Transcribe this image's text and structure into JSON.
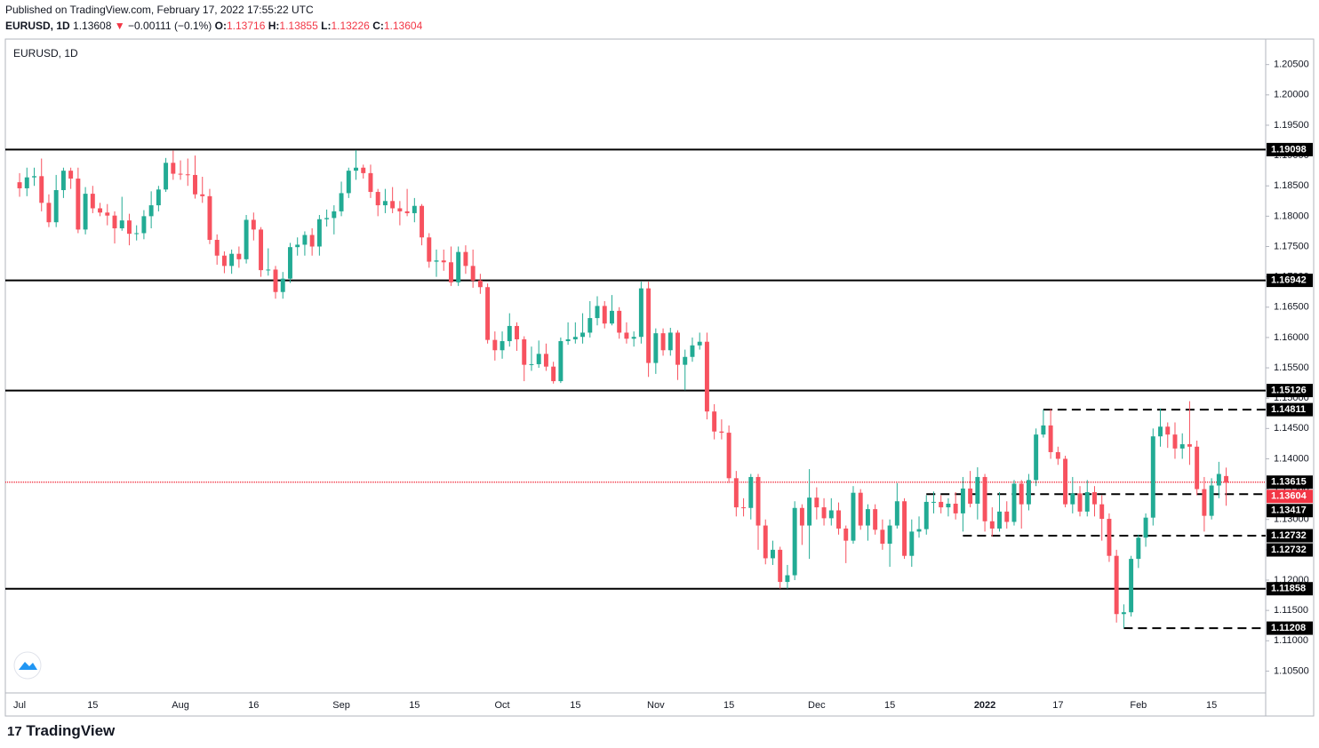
{
  "header": {
    "published": "Published on TradingView.com, February 17, 2022 17:55:22 UTC",
    "symbol": "EURUSD, 1D",
    "price": "1.13608",
    "arrow": "▼",
    "change": "−0.00111 (−0.1%)",
    "o_label": "O:",
    "o": "1.13716",
    "h_label": "H:",
    "h": "1.13855",
    "l_label": "L:",
    "l": "1.13226",
    "c_label": "C:",
    "c": "1.13604"
  },
  "footer": {
    "brand": "TradingView"
  },
  "chart_data": {
    "type": "candlestick",
    "title": "EURUSD, 1D",
    "up_color": "#22ab94",
    "down_color": "#f7525f",
    "grid": true,
    "xlim": [
      -1.95,
      170.4
    ],
    "ylim": [
      1.1014,
      1.2092
    ],
    "xticks": [
      {
        "value": 0,
        "label": "Jul"
      },
      {
        "value": 10,
        "label": "15"
      },
      {
        "value": 22,
        "label": "Aug"
      },
      {
        "value": 32,
        "label": "16"
      },
      {
        "value": 44,
        "label": "Sep"
      },
      {
        "value": 54,
        "label": "15"
      },
      {
        "value": 66,
        "label": "Oct"
      },
      {
        "value": 76,
        "label": "15"
      },
      {
        "value": 87,
        "label": "Nov"
      },
      {
        "value": 97,
        "label": "15"
      },
      {
        "value": 109,
        "label": "Dec"
      },
      {
        "value": 119,
        "label": "15"
      },
      {
        "value": 132,
        "label": "2022"
      },
      {
        "value": 142,
        "label": "17"
      },
      {
        "value": 153,
        "label": "Feb"
      },
      {
        "value": 163,
        "label": "15"
      }
    ],
    "yticks": [
      {
        "value": 1.105,
        "label": "1.10500"
      },
      {
        "value": 1.11,
        "label": "1.11000"
      },
      {
        "value": 1.115,
        "label": "1.11500"
      },
      {
        "value": 1.12,
        "label": "1.12000"
      },
      {
        "value": 1.125,
        "label": "1.12500"
      },
      {
        "value": 1.13,
        "label": "1.13000"
      },
      {
        "value": 1.135,
        "label": "1.13500"
      },
      {
        "value": 1.14,
        "label": "1.14000"
      },
      {
        "value": 1.145,
        "label": "1.14500"
      },
      {
        "value": 1.15,
        "label": "1.15000"
      },
      {
        "value": 1.155,
        "label": "1.15500"
      },
      {
        "value": 1.16,
        "label": "1.16000"
      },
      {
        "value": 1.165,
        "label": "1.16500"
      },
      {
        "value": 1.17,
        "label": "1.17000"
      },
      {
        "value": 1.175,
        "label": "1.17500"
      },
      {
        "value": 1.18,
        "label": "1.18000"
      },
      {
        "value": 1.185,
        "label": "1.18500"
      },
      {
        "value": 1.19,
        "label": "1.19000"
      },
      {
        "value": 1.195,
        "label": "1.19500"
      },
      {
        "value": 1.2,
        "label": "1.20000"
      },
      {
        "value": 1.205,
        "label": "1.20500"
      }
    ],
    "levels": [
      {
        "value": 1.19098,
        "label": "1.19098",
        "style": "solid"
      },
      {
        "value": 1.16942,
        "label": "1.16942",
        "style": "solid"
      },
      {
        "value": 1.15126,
        "label": "1.15126",
        "style": "solid"
      },
      {
        "value": 1.14811,
        "label": "1.14811",
        "style": "dashed",
        "from": 140
      },
      {
        "value": 1.13615,
        "label": "1.13615",
        "style": "dotted",
        "color": "#f23645"
      },
      {
        "value": 1.13417,
        "label": "1.13417",
        "style": "dashed",
        "from": 124
      },
      {
        "value": 1.12732,
        "label": "1.12732",
        "style": "dashed",
        "from": 129
      },
      {
        "value": 1.11858,
        "label": "1.11858",
        "style": "solid"
      },
      {
        "value": 1.11208,
        "label": "1.11208",
        "style": "dashed",
        "from": 151
      }
    ],
    "price_labels": [
      {
        "value": 1.13604,
        "label": "1.13604",
        "color": "#f23645"
      },
      {
        "value": 1.12732,
        "label": "1.12732"
      }
    ],
    "ohlc": [
      [
        1.1856,
        1.1871,
        1.1832,
        1.1846
      ],
      [
        1.1846,
        1.188,
        1.1833,
        1.1864
      ],
      [
        1.1864,
        1.188,
        1.185,
        1.1866
      ],
      [
        1.1866,
        1.1895,
        1.1808,
        1.1822
      ],
      [
        1.1822,
        1.1836,
        1.1782,
        1.179
      ],
      [
        1.179,
        1.1868,
        1.1782,
        1.1843
      ],
      [
        1.1843,
        1.188,
        1.183,
        1.1875
      ],
      [
        1.1875,
        1.188,
        1.1845,
        1.1862
      ],
      [
        1.1862,
        1.188,
        1.1772,
        1.1778
      ],
      [
        1.1778,
        1.1848,
        1.177,
        1.1837
      ],
      [
        1.1837,
        1.185,
        1.1805,
        1.1813
      ],
      [
        1.1813,
        1.1822,
        1.18,
        1.1806
      ],
      [
        1.1806,
        1.182,
        1.1785,
        1.1801
      ],
      [
        1.1801,
        1.1808,
        1.1755,
        1.178
      ],
      [
        1.178,
        1.1832,
        1.1776,
        1.1793
      ],
      [
        1.1793,
        1.1804,
        1.1752,
        1.1771
      ],
      [
        1.1771,
        1.1785,
        1.176,
        1.1772
      ],
      [
        1.1772,
        1.181,
        1.1762,
        1.18
      ],
      [
        1.18,
        1.1841,
        1.178,
        1.1818
      ],
      [
        1.1818,
        1.185,
        1.1808,
        1.1844
      ],
      [
        1.1844,
        1.1896,
        1.184,
        1.1888
      ],
      [
        1.1888,
        1.1908,
        1.186,
        1.187
      ],
      [
        1.187,
        1.1892,
        1.186,
        1.1869
      ],
      [
        1.1869,
        1.1895,
        1.185,
        1.1868
      ],
      [
        1.1868,
        1.19,
        1.1829,
        1.1836
      ],
      [
        1.1836,
        1.1865,
        1.1822,
        1.1833
      ],
      [
        1.1833,
        1.1845,
        1.1754,
        1.1761
      ],
      [
        1.1761,
        1.177,
        1.172,
        1.1735
      ],
      [
        1.1735,
        1.1742,
        1.1706,
        1.1718
      ],
      [
        1.1718,
        1.1745,
        1.1705,
        1.1738
      ],
      [
        1.1738,
        1.175,
        1.1715,
        1.1729
      ],
      [
        1.1729,
        1.1802,
        1.1722,
        1.1794
      ],
      [
        1.1794,
        1.1806,
        1.176,
        1.1778
      ],
      [
        1.1778,
        1.1782,
        1.17,
        1.1711
      ],
      [
        1.1711,
        1.1747,
        1.1702,
        1.1712
      ],
      [
        1.1712,
        1.1718,
        1.1664,
        1.1675
      ],
      [
        1.1675,
        1.1708,
        1.1664,
        1.1697
      ],
      [
        1.1697,
        1.1756,
        1.169,
        1.1749
      ],
      [
        1.1749,
        1.1765,
        1.1735,
        1.1753
      ],
      [
        1.1753,
        1.1775,
        1.1735,
        1.1769
      ],
      [
        1.1769,
        1.178,
        1.1735,
        1.175
      ],
      [
        1.175,
        1.1802,
        1.1735,
        1.1795
      ],
      [
        1.1795,
        1.1811,
        1.1783,
        1.1797
      ],
      [
        1.1797,
        1.1818,
        1.177,
        1.1808
      ],
      [
        1.1808,
        1.1857,
        1.18,
        1.1838
      ],
      [
        1.1838,
        1.188,
        1.183,
        1.1875
      ],
      [
        1.1875,
        1.1909,
        1.186,
        1.188
      ],
      [
        1.188,
        1.1885,
        1.1862,
        1.1871
      ],
      [
        1.1871,
        1.1885,
        1.183,
        1.184
      ],
      [
        1.184,
        1.1845,
        1.18,
        1.1818
      ],
      [
        1.1818,
        1.1845,
        1.1805,
        1.1825
      ],
      [
        1.1825,
        1.1848,
        1.1805,
        1.1813
      ],
      [
        1.1813,
        1.1825,
        1.1785,
        1.1808
      ],
      [
        1.1808,
        1.1845,
        1.18,
        1.1805
      ],
      [
        1.1805,
        1.183,
        1.179,
        1.1817
      ],
      [
        1.1817,
        1.182,
        1.1752,
        1.1765
      ],
      [
        1.1765,
        1.1772,
        1.1715,
        1.1725
      ],
      [
        1.1725,
        1.1745,
        1.17,
        1.1727
      ],
      [
        1.1727,
        1.1745,
        1.171,
        1.1724
      ],
      [
        1.1724,
        1.175,
        1.1685,
        1.1691
      ],
      [
        1.1691,
        1.175,
        1.1685,
        1.1741
      ],
      [
        1.1741,
        1.1752,
        1.1705,
        1.1718
      ],
      [
        1.1718,
        1.1745,
        1.1682,
        1.1694
      ],
      [
        1.1694,
        1.1705,
        1.1672,
        1.1683
      ],
      [
        1.1683,
        1.1689,
        1.159,
        1.1596
      ],
      [
        1.1596,
        1.161,
        1.1562,
        1.1579
      ],
      [
        1.1579,
        1.161,
        1.1565,
        1.1594
      ],
      [
        1.1594,
        1.164,
        1.1585,
        1.1619
      ],
      [
        1.1619,
        1.1625,
        1.1578,
        1.1597
      ],
      [
        1.1597,
        1.1602,
        1.1528,
        1.1555
      ],
      [
        1.1555,
        1.1585,
        1.1545,
        1.1556
      ],
      [
        1.1556,
        1.1595,
        1.155,
        1.1573
      ],
      [
        1.1573,
        1.159,
        1.1545,
        1.1552
      ],
      [
        1.1552,
        1.156,
        1.1524,
        1.1528
      ],
      [
        1.1528,
        1.16,
        1.1525,
        1.1594
      ],
      [
        1.1594,
        1.1625,
        1.1588,
        1.1597
      ],
      [
        1.1597,
        1.1625,
        1.159,
        1.1601
      ],
      [
        1.1601,
        1.164,
        1.159,
        1.1608
      ],
      [
        1.1608,
        1.166,
        1.16,
        1.1632
      ],
      [
        1.1632,
        1.1668,
        1.162,
        1.1652
      ],
      [
        1.1652,
        1.166,
        1.1615,
        1.1623
      ],
      [
        1.1623,
        1.167,
        1.162,
        1.1644
      ],
      [
        1.1644,
        1.165,
        1.1598,
        1.1608
      ],
      [
        1.1608,
        1.1625,
        1.159,
        1.1598
      ],
      [
        1.1598,
        1.161,
        1.1585,
        1.1601
      ],
      [
        1.1601,
        1.1692,
        1.159,
        1.1681
      ],
      [
        1.1681,
        1.1692,
        1.1535,
        1.1558
      ],
      [
        1.1558,
        1.1615,
        1.154,
        1.1607
      ],
      [
        1.1607,
        1.1615,
        1.157,
        1.1579
      ],
      [
        1.1579,
        1.1616,
        1.157,
        1.1608
      ],
      [
        1.1608,
        1.1612,
        1.153,
        1.1555
      ],
      [
        1.1555,
        1.158,
        1.1513,
        1.1568
      ],
      [
        1.1568,
        1.16,
        1.156,
        1.1587
      ],
      [
        1.1587,
        1.1608,
        1.158,
        1.1593
      ],
      [
        1.1593,
        1.1608,
        1.1465,
        1.1478
      ],
      [
        1.1478,
        1.149,
        1.1432,
        1.1445
      ],
      [
        1.1445,
        1.1465,
        1.1432,
        1.1443
      ],
      [
        1.1443,
        1.1455,
        1.136,
        1.1368
      ],
      [
        1.1368,
        1.138,
        1.1305,
        1.132
      ],
      [
        1.132,
        1.1335,
        1.1305,
        1.1319
      ],
      [
        1.1319,
        1.1375,
        1.13,
        1.137
      ],
      [
        1.137,
        1.1375,
        1.125,
        1.129
      ],
      [
        1.129,
        1.13,
        1.1226,
        1.1236
      ],
      [
        1.1236,
        1.1265,
        1.1225,
        1.125
      ],
      [
        1.125,
        1.1255,
        1.1186,
        1.1197
      ],
      [
        1.1197,
        1.1225,
        1.1186,
        1.1208
      ],
      [
        1.1208,
        1.133,
        1.12,
        1.1319
      ],
      [
        1.1319,
        1.1325,
        1.1258,
        1.129
      ],
      [
        1.129,
        1.1383,
        1.1235,
        1.1336
      ],
      [
        1.1336,
        1.1353,
        1.13,
        1.132
      ],
      [
        1.132,
        1.1335,
        1.129,
        1.1302
      ],
      [
        1.1302,
        1.1335,
        1.129,
        1.1315
      ],
      [
        1.1315,
        1.1328,
        1.1275,
        1.1285
      ],
      [
        1.1285,
        1.129,
        1.1228,
        1.1265
      ],
      [
        1.1265,
        1.1355,
        1.126,
        1.1344
      ],
      [
        1.1344,
        1.135,
        1.1283,
        1.129
      ],
      [
        1.129,
        1.1325,
        1.1265,
        1.1317
      ],
      [
        1.1317,
        1.1325,
        1.1275,
        1.1283
      ],
      [
        1.1283,
        1.13,
        1.125,
        1.126
      ],
      [
        1.126,
        1.13,
        1.1222,
        1.129
      ],
      [
        1.129,
        1.136,
        1.1285,
        1.133
      ],
      [
        1.133,
        1.1335,
        1.1235,
        1.124
      ],
      [
        1.124,
        1.13,
        1.1222,
        1.128
      ],
      [
        1.128,
        1.1305,
        1.127,
        1.1284
      ],
      [
        1.1284,
        1.134,
        1.1275,
        1.1329
      ],
      [
        1.1329,
        1.1346,
        1.131,
        1.1329
      ],
      [
        1.1329,
        1.134,
        1.131,
        1.132
      ],
      [
        1.132,
        1.1335,
        1.1305,
        1.1326
      ],
      [
        1.1326,
        1.1345,
        1.13,
        1.131
      ],
      [
        1.131,
        1.137,
        1.128,
        1.1351
      ],
      [
        1.1351,
        1.138,
        1.132,
        1.1326
      ],
      [
        1.1326,
        1.1386,
        1.13,
        1.137
      ],
      [
        1.137,
        1.1375,
        1.128,
        1.1297
      ],
      [
        1.1297,
        1.132,
        1.1272,
        1.1285
      ],
      [
        1.1285,
        1.1345,
        1.128,
        1.1313
      ],
      [
        1.1313,
        1.133,
        1.1285,
        1.1296
      ],
      [
        1.1296,
        1.1365,
        1.129,
        1.1359
      ],
      [
        1.1359,
        1.1365,
        1.1285,
        1.1325
      ],
      [
        1.1325,
        1.1375,
        1.1315,
        1.1365
      ],
      [
        1.1365,
        1.145,
        1.1355,
        1.144
      ],
      [
        1.144,
        1.1481,
        1.1435,
        1.1455
      ],
      [
        1.1455,
        1.1482,
        1.14,
        1.1411
      ],
      [
        1.1411,
        1.142,
        1.139,
        1.14
      ],
      [
        1.14,
        1.1405,
        1.132,
        1.1325
      ],
      [
        1.1325,
        1.137,
        1.131,
        1.1343
      ],
      [
        1.1343,
        1.1355,
        1.1305,
        1.1313
      ],
      [
        1.1313,
        1.1365,
        1.1305,
        1.1345
      ],
      [
        1.1345,
        1.1355,
        1.1305,
        1.1325
      ],
      [
        1.1325,
        1.134,
        1.1265,
        1.1301
      ],
      [
        1.1301,
        1.131,
        1.123,
        1.124
      ],
      [
        1.124,
        1.125,
        1.113,
        1.1144
      ],
      [
        1.1144,
        1.116,
        1.1121,
        1.1147
      ],
      [
        1.1147,
        1.124,
        1.114,
        1.1235
      ],
      [
        1.1235,
        1.1275,
        1.122,
        1.127
      ],
      [
        1.127,
        1.131,
        1.1255,
        1.1303
      ],
      [
        1.1303,
        1.145,
        1.129,
        1.1437
      ],
      [
        1.1437,
        1.1483,
        1.142,
        1.1453
      ],
      [
        1.1453,
        1.146,
        1.1418,
        1.144
      ],
      [
        1.144,
        1.146,
        1.14,
        1.1417
      ],
      [
        1.1417,
        1.1442,
        1.14,
        1.1424
      ],
      [
        1.1424,
        1.1495,
        1.139,
        1.142
      ],
      [
        1.142,
        1.143,
        1.134,
        1.135
      ],
      [
        1.135,
        1.137,
        1.128,
        1.1306
      ],
      [
        1.1306,
        1.1368,
        1.13,
        1.1356
      ],
      [
        1.1356,
        1.1395,
        1.1335,
        1.1375
      ],
      [
        1.13716,
        1.13855,
        1.13226,
        1.13604
      ]
    ]
  }
}
